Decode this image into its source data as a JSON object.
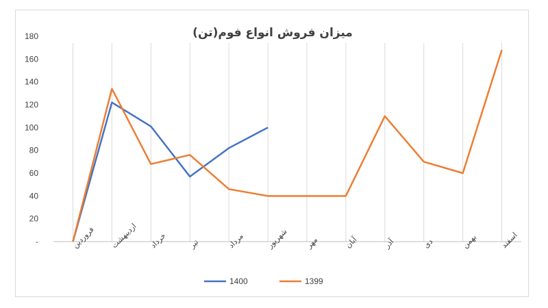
{
  "chart_data": {
    "type": "line",
    "title": "میزان فروش انواع فوم(تن)",
    "categories": [
      "فروردین",
      "اردیبهشت",
      "خرداد",
      "تیر",
      "مرداد",
      "شهریور",
      "مهر",
      "آبان",
      "آذر",
      "دی",
      "بهمن",
      "اسفند"
    ],
    "series": [
      {
        "name": "1400",
        "color": "#4472C4",
        "values": [
          0,
          122,
          101,
          57,
          82,
          100,
          null,
          null,
          null,
          null,
          null,
          null
        ]
      },
      {
        "name": "1399",
        "color": "#ED7D31",
        "values": [
          0,
          134,
          68,
          76,
          46,
          40,
          40,
          40,
          110,
          70,
          60,
          168
        ]
      }
    ],
    "ylim": [
      0,
      180
    ],
    "yticks": [
      0,
      20,
      40,
      60,
      80,
      100,
      120,
      140,
      160,
      180
    ],
    "ytick_labels": [
      "-",
      "20",
      "40",
      "60",
      "80",
      "100",
      "120",
      "140",
      "160",
      "180"
    ],
    "xlabel": "",
    "ylabel": "",
    "grid": "vertical",
    "legend_position": "bottom"
  }
}
